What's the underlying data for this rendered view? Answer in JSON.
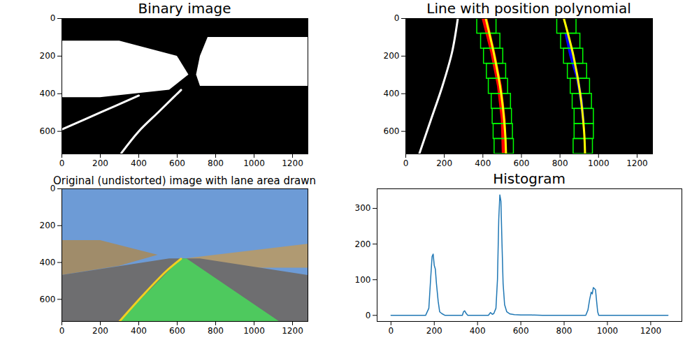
{
  "chart_data": [
    {
      "type": "image",
      "title": "Binary image",
      "xlim": [
        0,
        1280
      ],
      "ylim": [
        720,
        0
      ],
      "xticks": [
        0,
        200,
        400,
        600,
        800,
        1000,
        1200
      ],
      "yticks": [
        0,
        200,
        400,
        600
      ],
      "series": [
        {
          "type": "rect",
          "color": "#000000",
          "x1": [
            0
          ],
          "x2": [
            1280
          ],
          "y1": [
            0
          ],
          "y2": [
            720
          ]
        },
        {
          "type": "band",
          "color": "#ffffff",
          "y": [
            120,
            200,
            300,
            380,
            420
          ],
          "x1": [
            0,
            0,
            0,
            0,
            0
          ],
          "x2": [
            300,
            600,
            660,
            560,
            200
          ]
        },
        {
          "type": "band",
          "color": "#ffffff",
          "y": [
            100,
            200,
            300,
            360
          ],
          "x1": [
            760,
            720,
            700,
            720
          ],
          "x2": [
            1280,
            1280,
            1280,
            1280
          ]
        },
        {
          "type": "line",
          "color": "#ffffff",
          "x": [
            0,
            200,
            400
          ],
          "y": [
            590,
            500,
            410
          ]
        },
        {
          "type": "line",
          "color": "#ffffff",
          "x": [
            310,
            400,
            500,
            580,
            620
          ],
          "y": [
            715,
            600,
            500,
            420,
            380
          ]
        }
      ]
    },
    {
      "type": "image",
      "title": "Line with position polynomial",
      "xlim": [
        0,
        1280
      ],
      "ylim": [
        720,
        0
      ],
      "xticks": [
        0,
        200,
        400,
        600,
        800,
        1000,
        1200
      ],
      "yticks": [
        0,
        200,
        400,
        600
      ],
      "series": [
        {
          "type": "rect",
          "color": "#000000",
          "x1": [
            0
          ],
          "x2": [
            1280
          ],
          "y1": [
            0
          ],
          "y2": [
            720
          ]
        },
        {
          "type": "line",
          "color": "#ffffff",
          "x": [
            70,
            130,
            190,
            240,
            270
          ],
          "y": [
            720,
            540,
            360,
            180,
            0
          ]
        },
        {
          "type": "band",
          "color": "#ff0000",
          "y": [
            0,
            180,
            360,
            540,
            720
          ],
          "x1": [
            395,
            440,
            475,
            495,
            500
          ],
          "x2": [
            425,
            465,
            500,
            520,
            525
          ]
        },
        {
          "type": "band",
          "color": "#0000ff",
          "y": [
            80,
            200,
            320,
            440,
            560
          ],
          "x1": [
            825,
            850,
            885,
            905,
            918
          ],
          "x2": [
            845,
            870,
            900,
            920,
            930
          ]
        },
        {
          "type": "boxes",
          "color": "#00ff00",
          "x1": [
            460,
            455,
            450,
            445,
            430,
            420,
            405,
            390,
            370,
            870,
            875,
            875,
            865,
            855,
            840,
            820,
            805,
            785
          ],
          "x2": [
            560,
            555,
            550,
            545,
            530,
            520,
            505,
            490,
            470,
            970,
            975,
            975,
            965,
            955,
            940,
            920,
            905,
            885
          ],
          "y1": [
            640,
            560,
            480,
            400,
            320,
            240,
            160,
            80,
            0,
            640,
            560,
            480,
            400,
            320,
            240,
            160,
            80,
            0
          ],
          "y2": [
            720,
            640,
            560,
            480,
            400,
            320,
            240,
            160,
            80,
            720,
            640,
            560,
            480,
            400,
            320,
            240,
            160,
            80
          ]
        },
        {
          "type": "line",
          "color": "#ffff00",
          "x": [
            415,
            460,
            495,
            515,
            520
          ],
          "y": [
            0,
            200,
            400,
            600,
            720
          ]
        },
        {
          "type": "line",
          "color": "#ffff00",
          "x": [
            820,
            870,
            905,
            925,
            930
          ],
          "y": [
            0,
            200,
            400,
            600,
            720
          ]
        }
      ]
    },
    {
      "type": "image",
      "title": "Original (undistorted) image with lane area drawn",
      "xlim": [
        0,
        1280
      ],
      "ylim": [
        720,
        0
      ],
      "xticks": [
        0,
        200,
        400,
        600,
        800,
        1000,
        1200
      ],
      "yticks": [
        0,
        200,
        400,
        600
      ],
      "series": [
        {
          "type": "rect",
          "color": "#6d9bd6",
          "x1": [
            0
          ],
          "x2": [
            1280
          ],
          "y1": [
            0
          ],
          "y2": [
            720
          ]
        },
        {
          "type": "band",
          "color": "#a08c6a",
          "y": [
            280,
            360,
            420,
            470
          ],
          "x1": [
            0,
            0,
            0,
            0
          ],
          "x2": [
            200,
            500,
            300,
            0
          ]
        },
        {
          "type": "band",
          "color": "#b09a72",
          "y": [
            300,
            380,
            430
          ],
          "x1": [
            1280,
            640,
            1000
          ],
          "x2": [
            1280,
            1280,
            1280
          ]
        },
        {
          "type": "band",
          "color": "#6e6e70",
          "y": [
            380,
            470,
            720
          ],
          "x1": [
            560,
            0,
            0
          ],
          "x2": [
            720,
            1280,
            1280
          ]
        },
        {
          "type": "band",
          "color": "#4ec95e",
          "y": [
            380,
            720
          ],
          "x1": [
            620,
            300
          ],
          "x2": [
            650,
            1130
          ]
        },
        {
          "type": "line",
          "color": "#f0d020",
          "x": [
            620,
            540,
            420,
            300
          ],
          "y": [
            380,
            450,
            580,
            720
          ]
        }
      ]
    },
    {
      "type": "line",
      "title": "Histogram",
      "xlim": [
        -64,
        1344
      ],
      "ylim": [
        -17,
        355
      ],
      "xticks": [
        0,
        200,
        400,
        600,
        800,
        1000,
        1200
      ],
      "yticks": [
        0,
        100,
        200,
        300
      ],
      "x": [
        0,
        160,
        175,
        183,
        190,
        195,
        200,
        205,
        210,
        218,
        225,
        235,
        250,
        330,
        335,
        340,
        348,
        355,
        450,
        460,
        468,
        475,
        485,
        492,
        498,
        503,
        508,
        513,
        518,
        525,
        535,
        550,
        570,
        600,
        650,
        700,
        900,
        910,
        918,
        925,
        930,
        935,
        940,
        945,
        950,
        955,
        960,
        1280
      ],
      "series": [
        {
          "color": "#1f77b4",
          "values": [
            0,
            0,
            20,
            100,
            165,
            172,
            140,
            130,
            90,
            40,
            10,
            5,
            0,
            0,
            10,
            13,
            5,
            0,
            0,
            8,
            3,
            5,
            20,
            100,
            270,
            338,
            320,
            200,
            90,
            30,
            10,
            4,
            2,
            1,
            1,
            0,
            0,
            15,
            45,
            65,
            60,
            78,
            75,
            72,
            40,
            10,
            0,
            0
          ]
        }
      ]
    }
  ]
}
